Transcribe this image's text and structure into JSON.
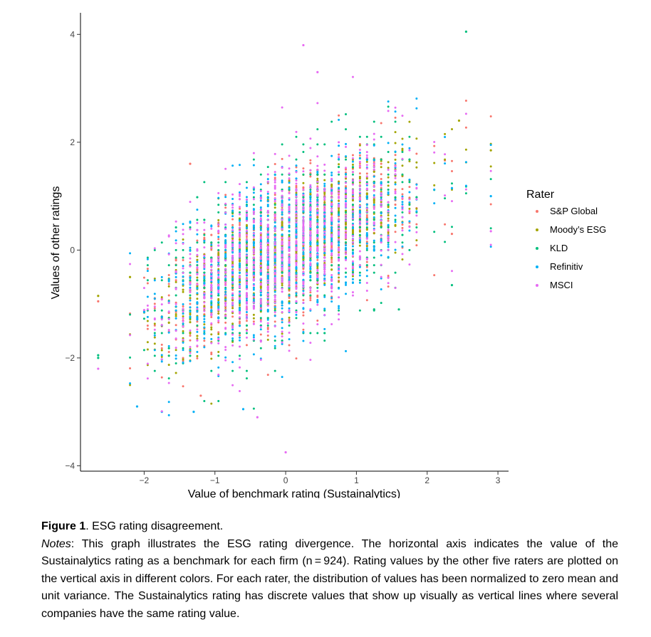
{
  "chart_data": {
    "type": "scatter",
    "xlabel": "Value of benchmark rating (Sustainalytics)",
    "ylabel": "Values of other ratings",
    "xlim": [
      -2.9,
      3.15
    ],
    "ylim": [
      -4.1,
      4.4
    ],
    "x_ticks": [
      -2,
      -1,
      0,
      1,
      2,
      3
    ],
    "x_tick_labels": [
      "−2",
      "−1",
      "0",
      "1",
      "2",
      "3"
    ],
    "y_ticks": [
      -4,
      -2,
      0,
      2,
      4
    ],
    "y_tick_labels": [
      "−4",
      "−2",
      "0",
      "2",
      "4"
    ],
    "grid": false,
    "legend": {
      "title": "Rater",
      "placement": "right",
      "entries": [
        "S&P Global",
        "Moody’s ESG",
        "KLD",
        "Refinitiv",
        "MSCI"
      ]
    },
    "n_firms": 924,
    "series": [
      {
        "name": "S&P Global",
        "color": "#F8766D",
        "slope": 0.62,
        "spread": 0.62,
        "notable_points": [
          [
            -2.65,
            -0.95
          ],
          [
            -1.35,
            1.6
          ],
          [
            -1.2,
            -2.7
          ],
          [
            2.35,
            0.3
          ]
        ]
      },
      {
        "name": "Moody’s ESG",
        "color": "#A3A500",
        "slope": 0.72,
        "spread": 0.52,
        "notable_points": [
          [
            -2.65,
            -0.85
          ],
          [
            -2.2,
            -0.5
          ],
          [
            2.45,
            2.4
          ],
          [
            2.9,
            1.85
          ]
        ]
      },
      {
        "name": "KLD",
        "color": "#00BF7D",
        "slope": 0.5,
        "spread": 0.72,
        "notable_points": [
          [
            -2.65,
            -1.95
          ],
          [
            -2.65,
            -2.0
          ],
          [
            2.55,
            4.05
          ],
          [
            2.35,
            -0.65
          ],
          [
            1.25,
            -1.1
          ],
          [
            1.6,
            -1.1
          ]
        ]
      },
      {
        "name": "Refinitiv",
        "color": "#00B0F6",
        "slope": 0.58,
        "spread": 0.7,
        "notable_points": [
          [
            -2.1,
            -2.9
          ],
          [
            -1.75,
            -3.0
          ],
          [
            -1.3,
            -3.0
          ],
          [
            -0.6,
            -2.95
          ],
          [
            2.9,
            1.0
          ]
        ]
      },
      {
        "name": "MSCI",
        "color": "#E76BF3",
        "slope": 0.55,
        "spread": 0.75,
        "notable_points": [
          [
            -2.65,
            -2.2
          ],
          [
            0.25,
            3.8
          ],
          [
            0.45,
            3.3
          ],
          [
            0.0,
            -3.75
          ],
          [
            2.9,
            0.35
          ],
          [
            -0.4,
            -3.1
          ]
        ]
      }
    ]
  },
  "caption": {
    "label": "Figure 1",
    "title": ". ESG rating disagreement.",
    "notes_label": "Notes",
    "notes_text": ": This graph illustrates the ESG rating divergence. The horizontal axis indicates the value of the Sustainalytics rating as a benchmark for each firm (n = 924). Rating values by the other five raters are plotted on the vertical axis in different colors. For each rater, the distribution of values has been normalized to zero mean and unit variance. The Sustainalytics rating has discrete values that show up visually as vertical lines where several companies have the same rating value."
  }
}
